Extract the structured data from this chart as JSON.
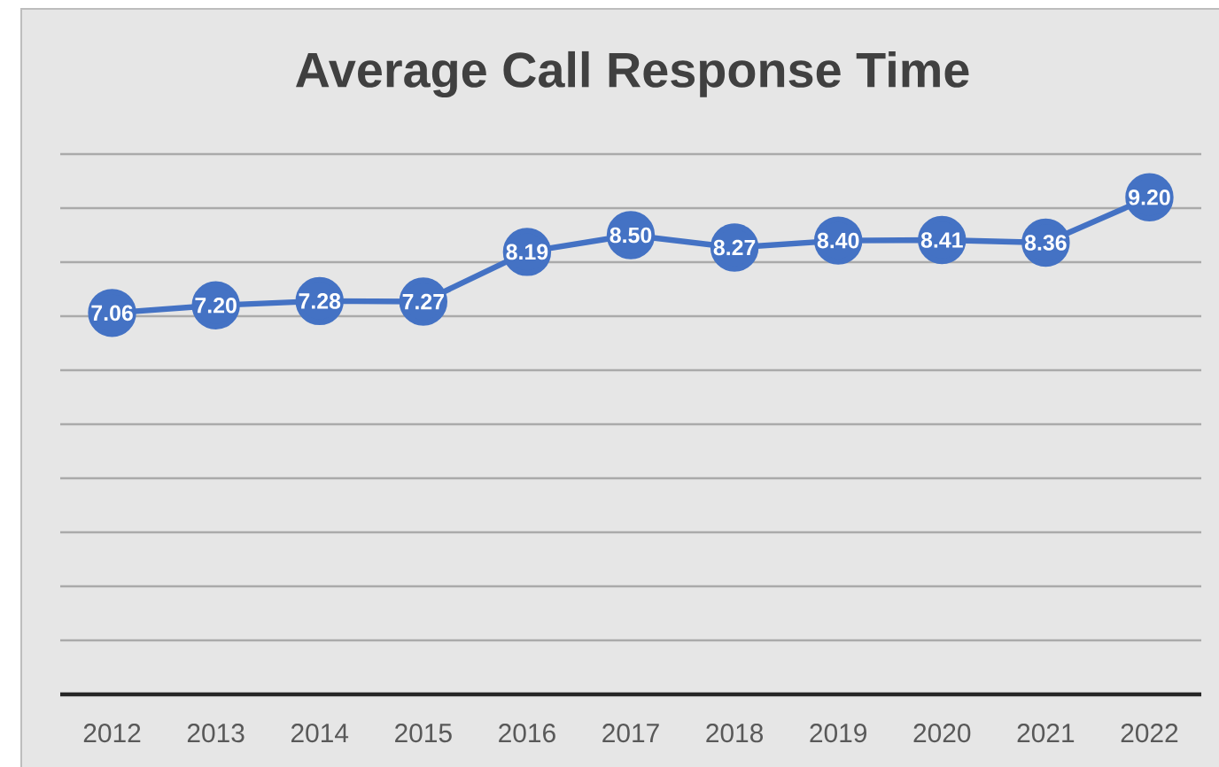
{
  "chart_data": {
    "type": "line",
    "title": "Average Call Response Time",
    "categories": [
      "2012",
      "2013",
      "2014",
      "2015",
      "2016",
      "2017",
      "2018",
      "2019",
      "2020",
      "2021",
      "2022"
    ],
    "values": [
      7.06,
      7.2,
      7.28,
      7.27,
      8.19,
      8.5,
      8.27,
      8.4,
      8.41,
      8.36,
      9.2
    ],
    "value_labels": [
      "7.06",
      "7.20",
      "7.28",
      "7.27",
      "8.19",
      "8.50",
      "8.27",
      "8.40",
      "8.41",
      "8.36",
      "9.20"
    ],
    "color": "#4472c4",
    "marker": "circle",
    "line_style": "solid",
    "ylim": [
      0,
      10
    ],
    "yticks": [
      {
        "value": 0,
        "label": null
      },
      {
        "value": 1,
        "label": null
      },
      {
        "value": 2,
        "label": null
      },
      {
        "value": 3,
        "label": null
      },
      {
        "value": 4,
        "label": null
      },
      {
        "value": 5,
        "label": null
      },
      {
        "value": 6,
        "label": null
      },
      {
        "value": 7,
        "label": null
      },
      {
        "value": 8,
        "label": null
      },
      {
        "value": 9,
        "label": null
      },
      {
        "value": 10,
        "label": null
      }
    ],
    "grid": "y",
    "tick_labels": "x"
  }
}
